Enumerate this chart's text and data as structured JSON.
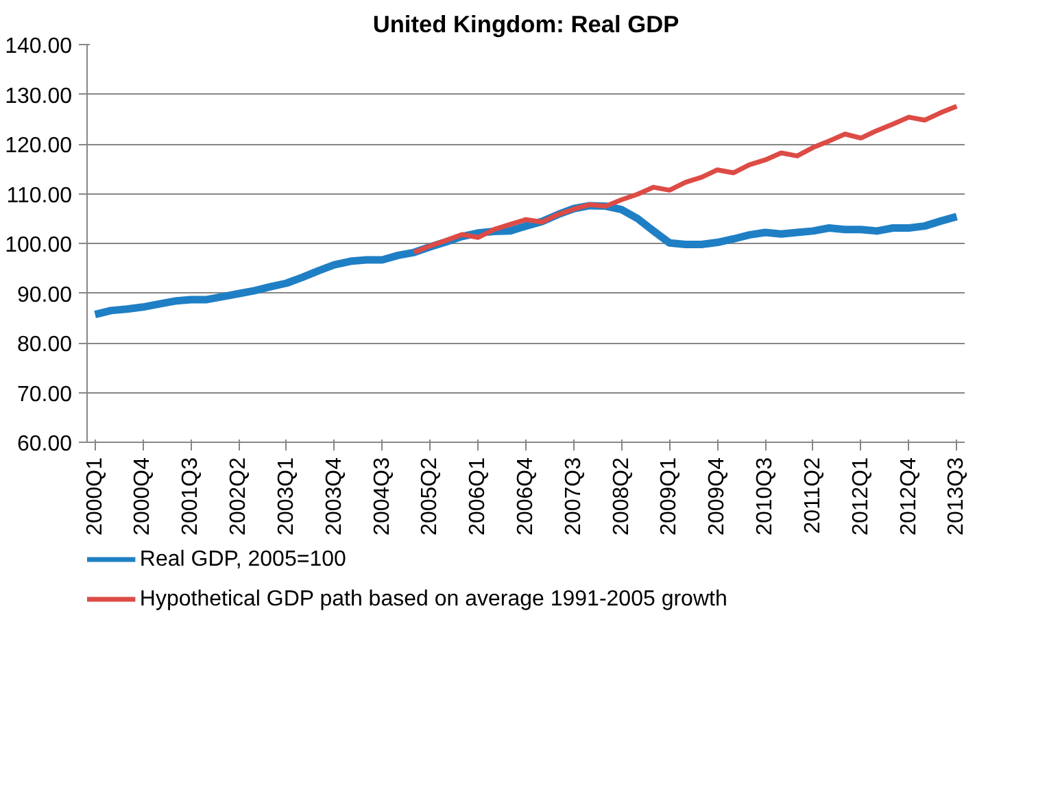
{
  "chart_data": {
    "type": "line",
    "title": "United Kingdom: Real GDP",
    "categories": [
      "2000Q1",
      null,
      null,
      "2000Q4",
      null,
      null,
      "2001Q3",
      null,
      null,
      "2002Q2",
      null,
      null,
      "2003Q1",
      null,
      null,
      "2003Q4",
      null,
      null,
      "2004Q3",
      null,
      null,
      "2005Q2",
      null,
      null,
      "2006Q1",
      null,
      null,
      "2006Q4",
      null,
      null,
      "2007Q3",
      null,
      null,
      "2008Q2",
      null,
      null,
      "2009Q1",
      null,
      null,
      "2009Q4",
      null,
      null,
      "2010Q3",
      null,
      null,
      "2011Q2",
      null,
      null,
      "2012Q1",
      null,
      null,
      "2012Q4",
      null,
      null,
      "2013Q3"
    ],
    "series": [
      {
        "name": "Real GDP, 2005=100",
        "color": "#1f7fc4",
        "values": [
          85.7,
          86.5,
          86.8,
          87.2,
          87.8,
          88.4,
          88.7,
          88.7,
          89.3,
          89.9,
          90.5,
          91.3,
          92.0,
          93.2,
          94.5,
          95.7,
          96.4,
          96.7,
          96.7,
          97.6,
          98.2,
          99.3,
          100.3,
          101.4,
          102.1,
          102.4,
          102.5,
          103.5,
          104.4,
          105.8,
          107.0,
          107.6,
          107.5,
          106.8,
          105.0,
          102.5,
          100.1,
          99.8,
          99.8,
          100.2,
          100.9,
          101.7,
          102.2,
          101.9,
          102.2,
          102.5,
          103.1,
          102.8,
          102.8,
          102.5,
          103.1,
          103.1,
          103.5,
          104.5,
          105.4
        ]
      },
      {
        "name": "Hypothetical GDP path based on average 1991-2005 growth",
        "color": "#dd4b45",
        "values": [
          null,
          null,
          null,
          null,
          null,
          null,
          null,
          null,
          null,
          null,
          null,
          null,
          null,
          null,
          null,
          null,
          null,
          null,
          null,
          null,
          98.2,
          99.5,
          100.6,
          101.8,
          101.2,
          102.8,
          103.8,
          104.8,
          104.3,
          105.8,
          106.9,
          107.8,
          107.5,
          108.8,
          109.9,
          111.3,
          110.7,
          112.3,
          113.3,
          114.8,
          114.2,
          115.8,
          116.8,
          118.2,
          117.6,
          119.3,
          120.6,
          122.0,
          121.2,
          122.7,
          124.0,
          125.4,
          124.8,
          126.3,
          127.6
        ]
      }
    ],
    "ylim": [
      60,
      140
    ],
    "yticks": [
      {
        "value": 60,
        "label": "60.00"
      },
      {
        "value": 70,
        "label": "70.00"
      },
      {
        "value": 80,
        "label": "80.00"
      },
      {
        "value": 90,
        "label": "90.00"
      },
      {
        "value": 100,
        "label": "100.00"
      },
      {
        "value": 110,
        "label": "110.00"
      },
      {
        "value": 120,
        "label": "120.00"
      },
      {
        "value": 130,
        "label": "130.00"
      },
      {
        "value": 140,
        "label": "140.00"
      }
    ],
    "grid": "y",
    "legend": "bottom",
    "marker": "none",
    "line_style": "solid"
  }
}
